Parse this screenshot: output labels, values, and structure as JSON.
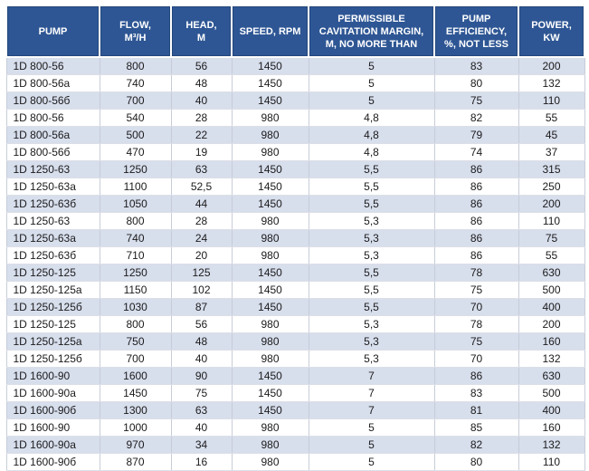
{
  "table": {
    "title": "pump-specifications",
    "header_bg": "#2e5694",
    "header_text_color": "#ffffff",
    "stripe_color": "#d7deec",
    "columns": [
      {
        "key": "pump",
        "label": "PUMP"
      },
      {
        "key": "flow",
        "label": "FLOW,\nM³/H"
      },
      {
        "key": "head",
        "label": "HEAD,\nM"
      },
      {
        "key": "speed",
        "label": "SPEED, RPM"
      },
      {
        "key": "cavitation",
        "label": "PERMISSIBLE\nCAVITATION MARGIN,\nM, NO MORE THAN"
      },
      {
        "key": "efficiency",
        "label": "PUMP\nEFFICIENCY,\n%, NOT LESS"
      },
      {
        "key": "power",
        "label": "POWER,\nKW"
      }
    ],
    "rows": [
      {
        "pump": "1D 800-56",
        "flow": "800",
        "head": "56",
        "speed": "1450",
        "cavitation": "5",
        "efficiency": "83",
        "power": "200"
      },
      {
        "pump": "1D 800-56a",
        "flow": "740",
        "head": "48",
        "speed": "1450",
        "cavitation": "5",
        "efficiency": "80",
        "power": "132"
      },
      {
        "pump": "1D 800-56б",
        "flow": "700",
        "head": "40",
        "speed": "1450",
        "cavitation": "5",
        "efficiency": "75",
        "power": "110"
      },
      {
        "pump": "1D 800-56",
        "flow": "540",
        "head": "28",
        "speed": "980",
        "cavitation": "4,8",
        "efficiency": "82",
        "power": "55"
      },
      {
        "pump": "1D 800-56a",
        "flow": "500",
        "head": "22",
        "speed": "980",
        "cavitation": "4,8",
        "efficiency": "79",
        "power": "45"
      },
      {
        "pump": "1D 800-56б",
        "flow": "470",
        "head": "19",
        "speed": "980",
        "cavitation": "4,8",
        "efficiency": "74",
        "power": "37"
      },
      {
        "pump": "1D 1250-63",
        "flow": "1250",
        "head": "63",
        "speed": "1450",
        "cavitation": "5,5",
        "efficiency": "86",
        "power": "315"
      },
      {
        "pump": "1D 1250-63a",
        "flow": "1100",
        "head": "52,5",
        "speed": "1450",
        "cavitation": "5,5",
        "efficiency": "86",
        "power": "250"
      },
      {
        "pump": "1D 1250-63б",
        "flow": "1050",
        "head": "44",
        "speed": "1450",
        "cavitation": "5,5",
        "efficiency": "86",
        "power": "200"
      },
      {
        "pump": "1D 1250-63",
        "flow": "800",
        "head": "28",
        "speed": "980",
        "cavitation": "5,3",
        "efficiency": "86",
        "power": "110"
      },
      {
        "pump": "1D 1250-63a",
        "flow": "740",
        "head": "24",
        "speed": "980",
        "cavitation": "5,3",
        "efficiency": "86",
        "power": "75"
      },
      {
        "pump": "1D 1250-63б",
        "flow": "710",
        "head": "20",
        "speed": "980",
        "cavitation": "5,3",
        "efficiency": "86",
        "power": "55"
      },
      {
        "pump": "1D 1250-125",
        "flow": "1250",
        "head": "125",
        "speed": "1450",
        "cavitation": "5,5",
        "efficiency": "78",
        "power": "630"
      },
      {
        "pump": "1D 1250-125a",
        "flow": "1150",
        "head": "102",
        "speed": "1450",
        "cavitation": "5,5",
        "efficiency": "75",
        "power": "500"
      },
      {
        "pump": "1D 1250-125б",
        "flow": "1030",
        "head": "87",
        "speed": "1450",
        "cavitation": "5,5",
        "efficiency": "70",
        "power": "400"
      },
      {
        "pump": "1D 1250-125",
        "flow": "800",
        "head": "56",
        "speed": "980",
        "cavitation": "5,3",
        "efficiency": "78",
        "power": "200"
      },
      {
        "pump": "1D 1250-125a",
        "flow": "750",
        "head": "48",
        "speed": "980",
        "cavitation": "5,3",
        "efficiency": "75",
        "power": "160"
      },
      {
        "pump": "1D 1250-125б",
        "flow": "700",
        "head": "40",
        "speed": "980",
        "cavitation": "5,3",
        "efficiency": "70",
        "power": "132"
      },
      {
        "pump": "1D 1600-90",
        "flow": "1600",
        "head": "90",
        "speed": "1450",
        "cavitation": "7",
        "efficiency": "86",
        "power": "630"
      },
      {
        "pump": "1D 1600-90a",
        "flow": "1450",
        "head": "75",
        "speed": "1450",
        "cavitation": "7",
        "efficiency": "83",
        "power": "500"
      },
      {
        "pump": "1D 1600-90б",
        "flow": "1300",
        "head": "63",
        "speed": "1450",
        "cavitation": "7",
        "efficiency": "81",
        "power": "400"
      },
      {
        "pump": "1D 1600-90",
        "flow": "1000",
        "head": "40",
        "speed": "980",
        "cavitation": "5",
        "efficiency": "85",
        "power": "160"
      },
      {
        "pump": "1D 1600-90a",
        "flow": "970",
        "head": "34",
        "speed": "980",
        "cavitation": "5",
        "efficiency": "82",
        "power": "132"
      },
      {
        "pump": "1D 1600-90б",
        "flow": "870",
        "head": "16",
        "speed": "980",
        "cavitation": "5",
        "efficiency": "80",
        "power": "110"
      }
    ]
  }
}
